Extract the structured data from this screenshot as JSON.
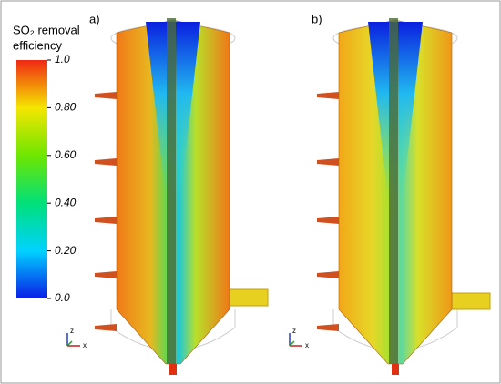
{
  "colorbar": {
    "title": [
      "SO₂ removal",
      "efficiency"
    ],
    "lim": [
      0,
      1
    ],
    "ticks": [
      {
        "value": 1,
        "label": "1.0"
      },
      {
        "value": 0.8,
        "label": "0.80"
      },
      {
        "value": 0.6,
        "label": "0.60"
      },
      {
        "value": 0.4,
        "label": "0.40"
      },
      {
        "value": 0.2,
        "label": "0.20"
      },
      {
        "value": 0,
        "label": "0.0"
      }
    ]
  },
  "panels": [
    {
      "label": "a)",
      "axes": [
        "z",
        "x"
      ]
    },
    {
      "label": "b)",
      "axes": [
        "z",
        "x"
      ]
    }
  ]
}
